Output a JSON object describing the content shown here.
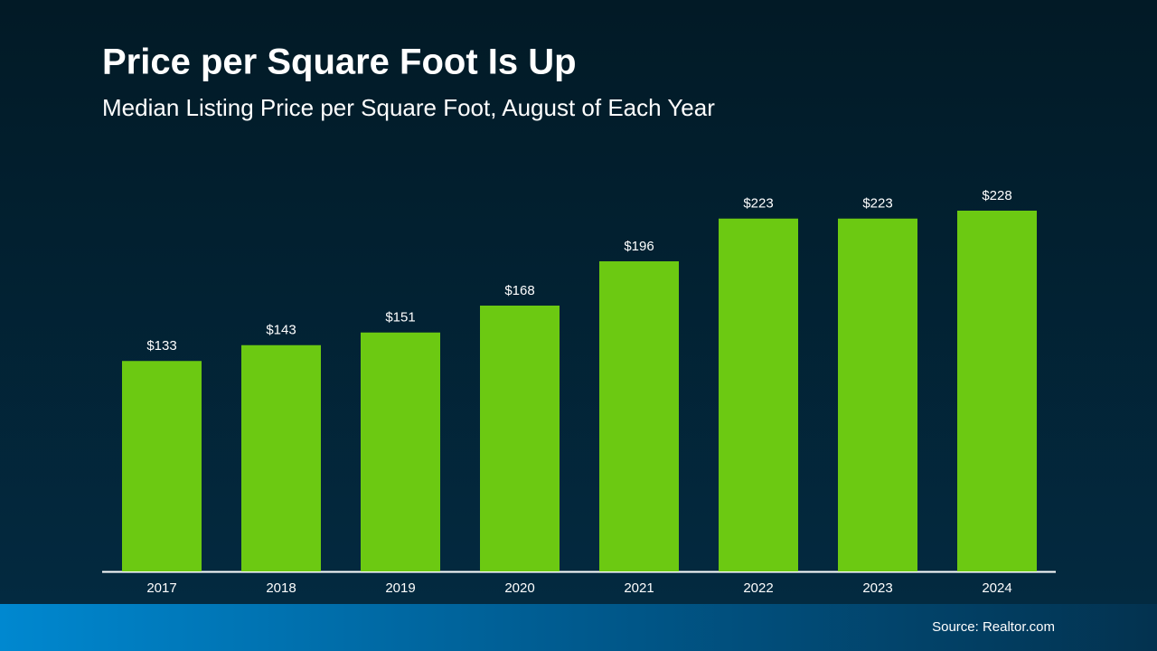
{
  "chart_data": {
    "type": "bar",
    "title": "Price per Square Foot Is Up",
    "subtitle": "Median Listing Price per Square Foot, August of Each Year",
    "categories": [
      "2017",
      "2018",
      "2019",
      "2020",
      "2021",
      "2022",
      "2023",
      "2024"
    ],
    "values": [
      133,
      143,
      151,
      168,
      196,
      223,
      223,
      228
    ],
    "value_labels": [
      "$133",
      "$143",
      "$151",
      "$168",
      "$196",
      "$223",
      "$223",
      "$228"
    ],
    "color": "#6cc912",
    "source": "Source: Realtor.com"
  }
}
